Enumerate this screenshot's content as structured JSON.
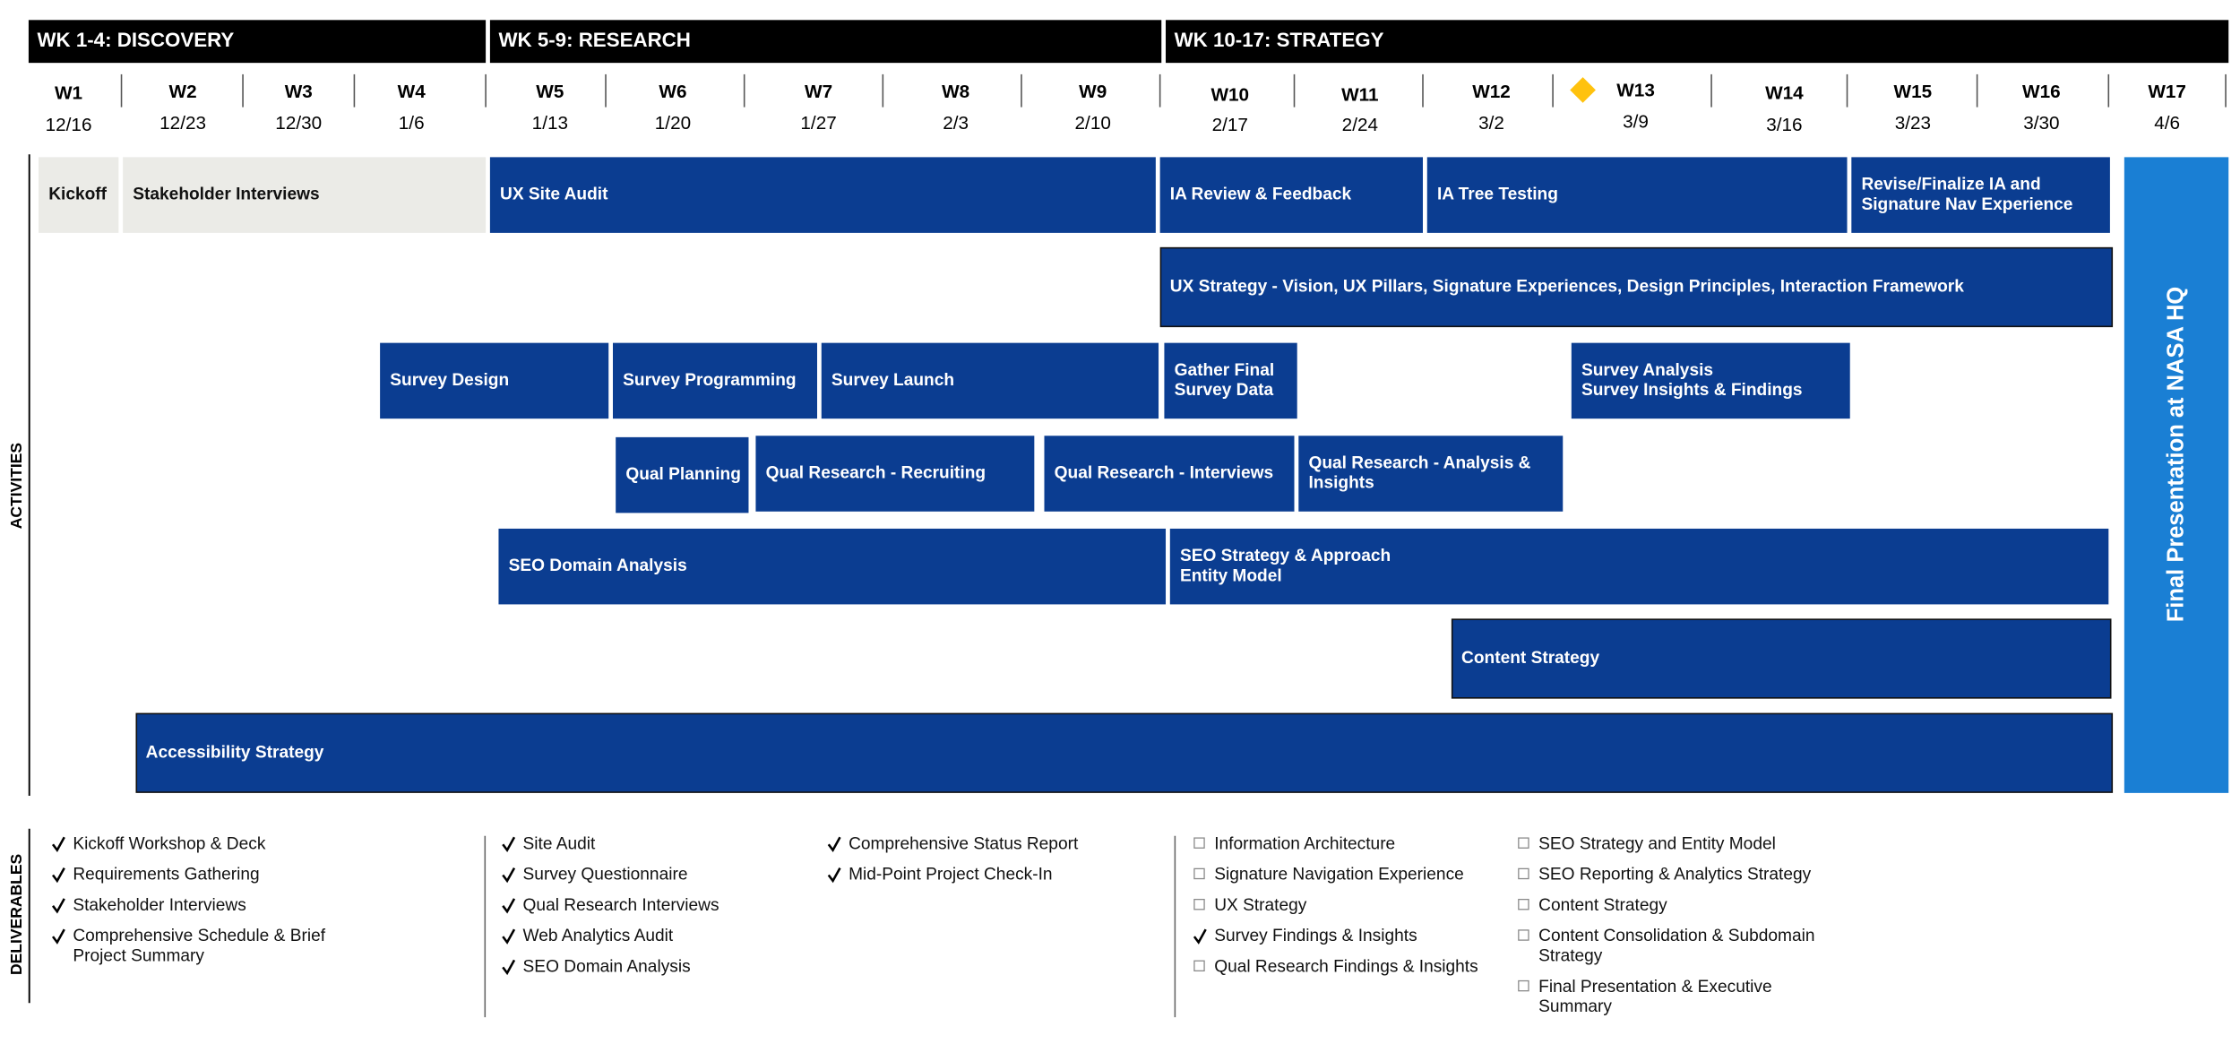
{
  "phases": [
    "WK 1-4: DISCOVERY",
    "WK 5-9: RESEARCH",
    "WK 10-17: STRATEGY"
  ],
  "weeks": [
    {
      "label": "W1",
      "date": "12/16"
    },
    {
      "label": "W2",
      "date": "12/23"
    },
    {
      "label": "W3",
      "date": "12/30"
    },
    {
      "label": "W4",
      "date": "1/6"
    },
    {
      "label": "W5",
      "date": "1/13"
    },
    {
      "label": "W6",
      "date": "1/20"
    },
    {
      "label": "W7",
      "date": "1/27"
    },
    {
      "label": "W8",
      "date": "2/3"
    },
    {
      "label": "W9",
      "date": "2/10"
    },
    {
      "label": "W10",
      "date": "2/17"
    },
    {
      "label": "W11",
      "date": "2/24"
    },
    {
      "label": "W12",
      "date": "3/2"
    },
    {
      "label": "W13",
      "date": "3/9"
    },
    {
      "label": "W14",
      "date": "3/16"
    },
    {
      "label": "W15",
      "date": "3/23"
    },
    {
      "label": "W16",
      "date": "3/30"
    },
    {
      "label": "W17",
      "date": "4/6"
    }
  ],
  "activities_label": "ACTIVITIES",
  "activities": [
    {
      "label": [
        "Kickoff"
      ]
    },
    {
      "label": [
        "Stakeholder Interviews"
      ]
    },
    {
      "label": [
        "UX Site Audit"
      ]
    },
    {
      "label": [
        "IA Review & Feedback"
      ]
    },
    {
      "label": [
        "IA Tree Testing"
      ]
    },
    {
      "label": [
        "Revise/Finalize IA and",
        "Signature Nav Experience"
      ]
    },
    {
      "label": [
        "UX Strategy - Vision, UX Pillars, Signature Experiences, Design Principles, Interaction Framework"
      ]
    },
    {
      "label": [
        "Survey Design"
      ]
    },
    {
      "label": [
        "Survey Programming"
      ]
    },
    {
      "label": [
        "Survey Launch"
      ]
    },
    {
      "label": [
        "Gather Final",
        "Survey Data"
      ]
    },
    {
      "label": [
        "Survey Analysis",
        "Survey Insights & Findings"
      ]
    },
    {
      "label": [
        "Qual Planning"
      ]
    },
    {
      "label": [
        "Qual Research - Recruiting"
      ]
    },
    {
      "label": [
        "Qual Research - Interviews"
      ]
    },
    {
      "label": [
        "Qual Research - Analysis &",
        "Insights"
      ]
    },
    {
      "label": [
        "SEO Domain Analysis"
      ]
    },
    {
      "label": [
        "SEO Strategy & Approach",
        "Entity Model"
      ]
    },
    {
      "label": [
        "Content Strategy"
      ]
    },
    {
      "label": [
        "Accessibility Strategy"
      ]
    }
  ],
  "final_presentation": "Final Presentation at NASA HQ",
  "deliverables_label": "DELIVERABLES",
  "deliverables": [
    [
      {
        "text": [
          "Kickoff Workshop & Deck"
        ],
        "done": true
      },
      {
        "text": [
          "Requirements Gathering"
        ],
        "done": true
      },
      {
        "text": [
          "Stakeholder Interviews"
        ],
        "done": true
      },
      {
        "text": [
          "Comprehensive Schedule & Brief",
          "Project Summary"
        ],
        "done": true
      }
    ],
    [
      {
        "text": [
          "Site Audit"
        ],
        "done": true
      },
      {
        "text": [
          "Survey Questionnaire"
        ],
        "done": true
      },
      {
        "text": [
          "Qual Research Interviews"
        ],
        "done": true
      },
      {
        "text": [
          "Web Analytics Audit"
        ],
        "done": true
      },
      {
        "text": [
          "SEO Domain Analysis"
        ],
        "done": true
      }
    ],
    [
      {
        "text": [
          "Comprehensive Status Report"
        ],
        "done": true
      },
      {
        "text": [
          "Mid-Point Project Check-In"
        ],
        "done": true
      }
    ],
    [
      {
        "text": [
          "Information Architecture"
        ],
        "done": false
      },
      {
        "text": [
          "Signature Navigation Experience"
        ],
        "done": false
      },
      {
        "text": [
          "UX Strategy"
        ],
        "done": false
      },
      {
        "text": [
          "Survey Findings & Insights"
        ],
        "done": true
      },
      {
        "text": [
          "Qual Research Findings & Insights"
        ],
        "done": false
      }
    ],
    [
      {
        "text": [
          "SEO Strategy and Entity Model"
        ],
        "done": false
      },
      {
        "text": [
          "SEO Reporting & Analytics Strategy"
        ],
        "done": false
      },
      {
        "text": [
          "Content Strategy"
        ],
        "done": false
      },
      {
        "text": [
          "Content Consolidation & Subdomain",
          "Strategy"
        ],
        "done": false
      },
      {
        "text": [
          "Final Presentation & Executive",
          "Summary"
        ],
        "done": false
      }
    ]
  ]
}
